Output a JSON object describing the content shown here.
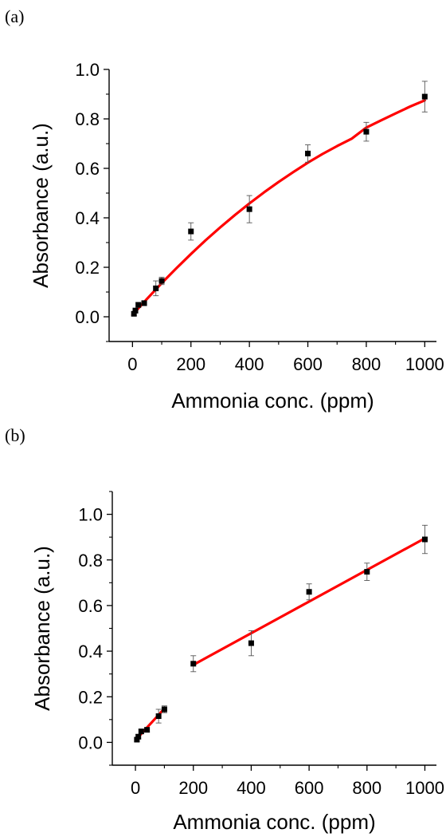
{
  "panels": [
    {
      "label": "(a)"
    },
    {
      "label": "(b)"
    }
  ],
  "chart_data": [
    {
      "type": "scatter",
      "xlabel": "Ammonia conc. (ppm)",
      "ylabel": "Absorbance (a.u.)",
      "xlim": [
        -80,
        1040
      ],
      "ylim": [
        -0.1,
        1.0
      ],
      "xticks": [
        0,
        200,
        400,
        600,
        800,
        1000
      ],
      "yticks": [
        0.0,
        0.2,
        0.4,
        0.6,
        0.8,
        1.0
      ],
      "tick_labels_x": [
        "0",
        "200",
        "400",
        "600",
        "800",
        "1000"
      ],
      "tick_labels_y": [
        "0.0",
        "0.2",
        "0.4",
        "0.6",
        "0.8",
        "1.0"
      ],
      "grid": false,
      "marker_color": "#000000",
      "fit_color": "#ff0000",
      "points": {
        "x": [
          5,
          10,
          20,
          40,
          80,
          100,
          200,
          400,
          600,
          800,
          1000
        ],
        "y": [
          0.012,
          0.025,
          0.048,
          0.055,
          0.115,
          0.145,
          0.345,
          0.435,
          0.66,
          0.748,
          0.89
        ],
        "err": [
          0.008,
          0.01,
          0.01,
          0.01,
          0.03,
          0.015,
          0.035,
          0.055,
          0.035,
          0.038,
          0.062
        ]
      },
      "fit_curves": [
        {
          "x": [
            0,
            50,
            100,
            150,
            200,
            250,
            300,
            350,
            400,
            450,
            500,
            550,
            600,
            650,
            700,
            750,
            800,
            850,
            900,
            950,
            1000
          ],
          "y": [
            0.008,
            0.073,
            0.136,
            0.196,
            0.254,
            0.309,
            0.361,
            0.411,
            0.458,
            0.503,
            0.545,
            0.585,
            0.623,
            0.658,
            0.69,
            0.72,
            0.765,
            0.794,
            0.822,
            0.85,
            0.875
          ]
        }
      ]
    },
    {
      "type": "scatter",
      "xlabel": "Ammonia conc. (ppm)",
      "ylabel": "Absorbance (a.u.)",
      "xlim": [
        -80,
        1040
      ],
      "ylim": [
        -0.1,
        1.1
      ],
      "xticks": [
        0,
        200,
        400,
        600,
        800,
        1000
      ],
      "yticks": [
        0.0,
        0.2,
        0.4,
        0.6,
        0.8,
        1.0
      ],
      "tick_labels_x": [
        "0",
        "200",
        "400",
        "600",
        "800",
        "1000"
      ],
      "tick_labels_y": [
        "0.0",
        "0.2",
        "0.4",
        "0.6",
        "0.8",
        "1.0"
      ],
      "grid": false,
      "marker_color": "#000000",
      "fit_color": "#ff0000",
      "points": {
        "x": [
          5,
          10,
          20,
          40,
          80,
          100,
          200,
          400,
          600,
          800,
          1000
        ],
        "y": [
          0.012,
          0.025,
          0.048,
          0.055,
          0.115,
          0.145,
          0.345,
          0.435,
          0.66,
          0.748,
          0.89
        ],
        "err": [
          0.008,
          0.01,
          0.01,
          0.01,
          0.03,
          0.015,
          0.035,
          0.055,
          0.035,
          0.038,
          0.062
        ]
      },
      "fit_curves": [
        {
          "x": [
            0,
            100
          ],
          "y": [
            0.01,
            0.148
          ]
        },
        {
          "x": [
            200,
            1000
          ],
          "y": [
            0.34,
            0.895
          ]
        }
      ]
    }
  ]
}
